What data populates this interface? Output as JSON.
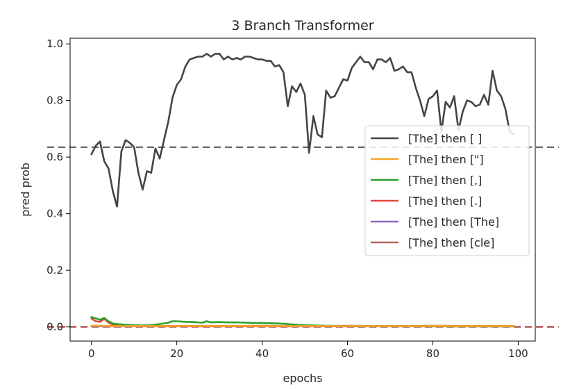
{
  "chart_data": {
    "type": "line",
    "title": "3 Branch Transformer",
    "xlabel": "epochs",
    "ylabel": "pred prob",
    "xlim": [
      -5,
      104
    ],
    "ylim": [
      -0.05,
      1.02
    ],
    "xticks": [
      0,
      20,
      40,
      60,
      80,
      100
    ],
    "yticks": [
      0.0,
      0.2,
      0.4,
      0.6,
      0.8,
      1.0
    ],
    "xtick_labels": [
      "0",
      "20",
      "40",
      "60",
      "80",
      "100"
    ],
    "ytick_labels": [
      "0.0",
      "0.2",
      "0.4",
      "0.6",
      "0.8",
      "1.0"
    ],
    "grid": false,
    "legend_position": "center-right",
    "hlines": [
      {
        "y": 0.635,
        "color": "#555555",
        "style": "dashed"
      },
      {
        "y": 0.0,
        "color": "#a52a2a",
        "style": "dashed"
      }
    ],
    "series": [
      {
        "name": "[The] then [ ]",
        "color": "#444444",
        "x": [
          0,
          1,
          2,
          3,
          4,
          5,
          6,
          7,
          8,
          9,
          10,
          11,
          12,
          13,
          14,
          15,
          16,
          17,
          18,
          19,
          20,
          21,
          22,
          23,
          24,
          25,
          26,
          27,
          28,
          29,
          30,
          31,
          32,
          33,
          34,
          35,
          36,
          37,
          38,
          39,
          40,
          41,
          42,
          43,
          44,
          45,
          46,
          47,
          48,
          49,
          50,
          51,
          52,
          53,
          54,
          55,
          56,
          57,
          58,
          59,
          60,
          61,
          62,
          63,
          64,
          65,
          66,
          67,
          68,
          69,
          70,
          71,
          72,
          73,
          74,
          75,
          76,
          77,
          78,
          79,
          80,
          81,
          82,
          83,
          84,
          85,
          86,
          87,
          88,
          89,
          90,
          91,
          92,
          93,
          94,
          95,
          96,
          97,
          98,
          99
        ],
        "y": [
          0.61,
          0.64,
          0.655,
          0.585,
          0.56,
          0.48,
          0.425,
          0.62,
          0.66,
          0.65,
          0.635,
          0.545,
          0.485,
          0.55,
          0.545,
          0.63,
          0.595,
          0.66,
          0.725,
          0.81,
          0.855,
          0.875,
          0.92,
          0.945,
          0.95,
          0.955,
          0.955,
          0.965,
          0.955,
          0.965,
          0.965,
          0.945,
          0.955,
          0.945,
          0.95,
          0.945,
          0.955,
          0.955,
          0.95,
          0.945,
          0.945,
          0.94,
          0.94,
          0.92,
          0.925,
          0.9,
          0.78,
          0.85,
          0.83,
          0.86,
          0.82,
          0.615,
          0.745,
          0.68,
          0.67,
          0.835,
          0.81,
          0.815,
          0.845,
          0.875,
          0.87,
          0.915,
          0.935,
          0.955,
          0.935,
          0.935,
          0.91,
          0.945,
          0.945,
          0.935,
          0.95,
          0.905,
          0.91,
          0.92,
          0.9,
          0.9,
          0.845,
          0.8,
          0.745,
          0.805,
          0.815,
          0.835,
          0.69,
          0.795,
          0.775,
          0.815,
          0.695,
          0.76,
          0.8,
          0.795,
          0.78,
          0.785,
          0.82,
          0.785,
          0.905,
          0.835,
          0.815,
          0.77,
          0.69,
          0.68
        ]
      },
      {
        "name": "[The] then [\"]",
        "color": "#f5a623",
        "x": [
          0,
          5,
          10,
          20,
          30,
          40,
          50,
          60,
          70,
          80,
          90,
          99
        ],
        "y": [
          0.004,
          0.003,
          0.003,
          0.003,
          0.003,
          0.003,
          0.003,
          0.003,
          0.003,
          0.003,
          0.003,
          0.003
        ]
      },
      {
        "name": "[The] then [,]",
        "color": "#2ca02c",
        "x": [
          0,
          1,
          2,
          3,
          4,
          5,
          6,
          8,
          10,
          12,
          14,
          16,
          18,
          19,
          20,
          22,
          24,
          26,
          27,
          28,
          30,
          32,
          34,
          36,
          38,
          40,
          42,
          44,
          46,
          48,
          50,
          55,
          60,
          70,
          80,
          90,
          99
        ],
        "y": [
          0.035,
          0.03,
          0.025,
          0.032,
          0.02,
          0.012,
          0.01,
          0.008,
          0.006,
          0.005,
          0.006,
          0.01,
          0.015,
          0.02,
          0.02,
          0.018,
          0.017,
          0.015,
          0.02,
          0.016,
          0.017,
          0.016,
          0.016,
          0.015,
          0.014,
          0.014,
          0.013,
          0.012,
          0.01,
          0.008,
          0.006,
          0.004,
          0.003,
          0.003,
          0.002,
          0.002,
          0.002
        ]
      },
      {
        "name": "[The] then [.]",
        "color": "#e8473f",
        "x": [
          0,
          1,
          2,
          3,
          4,
          5,
          6,
          8,
          10,
          15,
          20,
          30,
          40,
          50,
          60,
          70,
          80,
          90,
          99
        ],
        "y": [
          0.03,
          0.02,
          0.018,
          0.028,
          0.015,
          0.008,
          0.006,
          0.004,
          0.003,
          0.003,
          0.003,
          0.003,
          0.003,
          0.003,
          0.003,
          0.003,
          0.003,
          0.003,
          0.003
        ]
      },
      {
        "name": "[The] then [The]",
        "color": "#9467bd",
        "x": [
          0,
          10,
          20,
          30,
          40,
          50,
          60,
          70,
          80,
          90,
          99
        ],
        "y": [
          0.002,
          0.002,
          0.002,
          0.002,
          0.002,
          0.002,
          0.002,
          0.002,
          0.002,
          0.002,
          0.002
        ]
      },
      {
        "name": "[The] then [cle]",
        "color": "#b5655a",
        "x": [
          0,
          2,
          4,
          6,
          10,
          20,
          30,
          40,
          50,
          60,
          70,
          80,
          90,
          99
        ],
        "y": [
          0.004,
          0.004,
          0.003,
          0.003,
          0.003,
          0.003,
          0.003,
          0.004,
          0.003,
          0.004,
          0.003,
          0.004,
          0.003,
          0.003
        ]
      }
    ]
  }
}
